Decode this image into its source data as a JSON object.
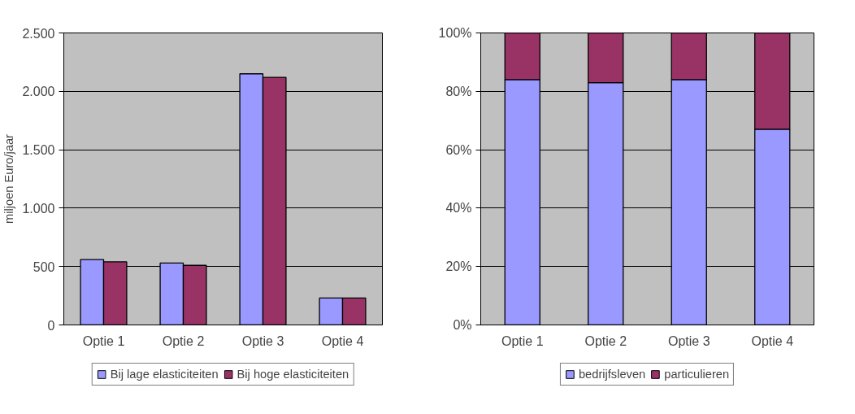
{
  "chart_data": [
    {
      "type": "bar",
      "ylabel": "miljoen Euro/jaar",
      "categories": [
        "Optie 1",
        "Optie 2",
        "Optie 3",
        "Optie 4"
      ],
      "series": [
        {
          "name": "Bij lage elasticiteiten",
          "color": "#9999ff",
          "values": [
            560,
            530,
            2150,
            230
          ]
        },
        {
          "name": "Bij hoge elasticiteiten",
          "color": "#993366",
          "values": [
            540,
            510,
            2120,
            230
          ]
        }
      ],
      "ylim": [
        0,
        2500
      ],
      "yticks": [
        0,
        500,
        {
          "value": 1000,
          "label": "1.000"
        },
        {
          "value": 1500,
          "label": "1.500"
        },
        {
          "value": 2000,
          "label": "2.000"
        },
        {
          "value": 2500,
          "label": "2.500"
        }
      ],
      "grid": "y",
      "legend": "bottom"
    },
    {
      "type": "bar",
      "stacked": true,
      "categories": [
        "Optie 1",
        "Optie 2",
        "Optie 3",
        "Optie 4"
      ],
      "series": [
        {
          "name": "bedrijfsleven",
          "color": "#9999ff",
          "values": [
            84,
            83,
            84,
            67
          ]
        },
        {
          "name": "particulieren",
          "color": "#993366",
          "values": [
            16,
            17,
            16,
            33
          ]
        }
      ],
      "ylim": [
        0,
        100
      ],
      "yticks": [
        {
          "value": 0,
          "label": "0%"
        },
        {
          "value": 20,
          "label": "20%"
        },
        {
          "value": 40,
          "label": "40%"
        },
        {
          "value": 60,
          "label": "60%"
        },
        {
          "value": 80,
          "label": "80%"
        },
        {
          "value": 100,
          "label": "100%"
        }
      ],
      "grid": "y",
      "legend": "bottom"
    }
  ]
}
